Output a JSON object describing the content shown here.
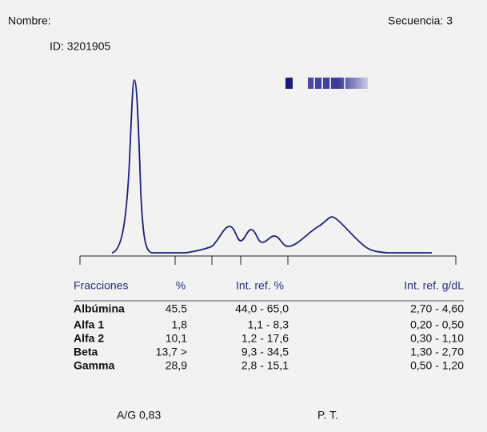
{
  "header": {
    "name_label": "Nombre:",
    "sequence": "Secuencia: 3",
    "id": "ID: 3201905"
  },
  "table": {
    "columns": [
      "Fracciones",
      "%",
      "Int. ref. %",
      "Int. ref. g/dL"
    ],
    "rows": [
      [
        "Albúmina",
        "45.5",
        "44,0 - 65,0",
        "2,70 - 4,60"
      ],
      [
        "Alfa 1",
        "1,8",
        "1,1 - 8,3",
        "0,20 - 0,50"
      ],
      [
        "Alfa 2",
        "10,1",
        "1,2 - 17,6",
        "0,30 - 1,10"
      ],
      [
        "Beta",
        "13,7 >",
        "9,3 - 34,5",
        "1,30 - 2,70"
      ],
      [
        "Gamma",
        "28,9",
        "2,8 - 15,1",
        "0,50 - 1,20"
      ]
    ]
  },
  "footer": {
    "ag_ratio": "A/G 0,83",
    "total_protein": "P. T."
  }
}
